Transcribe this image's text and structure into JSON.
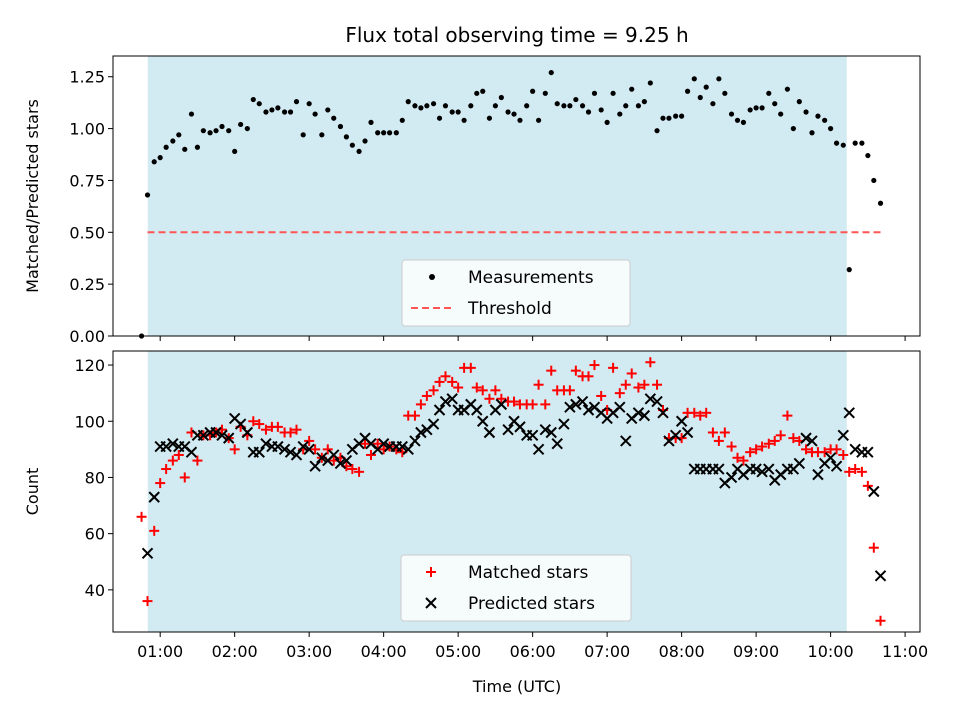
{
  "figure": {
    "title": "Flux total observing time = 9.25 h",
    "colors": {
      "shade": "#add8e6",
      "measurement": "#000000",
      "threshold": "#ff5555",
      "matched": "#ff0000",
      "predicted": "#000000"
    }
  },
  "chart_data": [
    {
      "type": "scatter",
      "title": "Flux total observing time = 9.25 h",
      "xlabel": "",
      "ylabel": "Matched/Predicted stars",
      "x_unit": "hours (UTC)",
      "xlim": [
        "00:22",
        "11:12"
      ],
      "ylim": [
        0,
        1.35
      ],
      "yticks": [
        0.0,
        0.25,
        0.5,
        0.75,
        1.0,
        1.25
      ],
      "ytick_labels": [
        "0.00",
        "0.25",
        "0.50",
        "0.75",
        "1.00",
        "1.25"
      ],
      "grid": false,
      "legend": "bottom-center",
      "shaded_span": [
        "00:50",
        "10:13"
      ],
      "series": [
        {
          "name": "Measurements",
          "kind": "scatter",
          "x": [
            0.75,
            0.83,
            0.92,
            1.0,
            1.08,
            1.17,
            1.25,
            1.33,
            1.42,
            1.5,
            1.58,
            1.67,
            1.75,
            1.83,
            1.92,
            2.0,
            2.08,
            2.17,
            2.25,
            2.33,
            2.42,
            2.5,
            2.58,
            2.67,
            2.75,
            2.83,
            2.92,
            3.0,
            3.08,
            3.17,
            3.25,
            3.33,
            3.42,
            3.5,
            3.58,
            3.67,
            3.75,
            3.83,
            3.92,
            4.0,
            4.08,
            4.17,
            4.25,
            4.33,
            4.42,
            4.5,
            4.58,
            4.67,
            4.75,
            4.83,
            4.92,
            5.0,
            5.08,
            5.17,
            5.25,
            5.33,
            5.42,
            5.5,
            5.58,
            5.67,
            5.75,
            5.83,
            5.92,
            6.0,
            6.08,
            6.17,
            6.25,
            6.33,
            6.42,
            6.5,
            6.58,
            6.67,
            6.75,
            6.83,
            6.92,
            7.0,
            7.08,
            7.17,
            7.25,
            7.33,
            7.42,
            7.5,
            7.58,
            7.67,
            7.75,
            7.83,
            7.92,
            8.0,
            8.08,
            8.17,
            8.25,
            8.33,
            8.42,
            8.5,
            8.58,
            8.67,
            8.75,
            8.83,
            8.92,
            9.0,
            9.08,
            9.17,
            9.25,
            9.33,
            9.42,
            9.5,
            9.58,
            9.67,
            9.75,
            9.83,
            9.92,
            10.0,
            10.08,
            10.17,
            10.25,
            10.33,
            10.42,
            10.5,
            10.58,
            10.67
          ],
          "y": [
            0.0,
            0.68,
            0.84,
            0.86,
            0.91,
            0.94,
            0.97,
            0.9,
            1.07,
            0.91,
            0.99,
            0.98,
            0.99,
            1.01,
            0.99,
            0.89,
            1.02,
            1.0,
            1.14,
            1.12,
            1.08,
            1.09,
            1.1,
            1.08,
            1.08,
            1.13,
            0.97,
            1.12,
            1.07,
            0.97,
            1.09,
            1.05,
            1.01,
            0.96,
            0.92,
            0.89,
            0.94,
            1.03,
            0.98,
            0.98,
            0.98,
            0.98,
            1.04,
            1.13,
            1.11,
            1.1,
            1.11,
            1.12,
            1.05,
            1.11,
            1.08,
            1.08,
            1.04,
            1.11,
            1.17,
            1.18,
            1.05,
            1.11,
            1.15,
            1.08,
            1.07,
            1.04,
            1.11,
            1.18,
            1.04,
            1.17,
            1.27,
            1.12,
            1.11,
            1.11,
            1.14,
            1.11,
            1.08,
            1.17,
            1.09,
            1.03,
            1.17,
            1.07,
            1.11,
            1.19,
            1.11,
            1.13,
            1.22,
            0.99,
            1.05,
            1.05,
            1.06,
            1.06,
            1.18,
            1.24,
            1.15,
            1.2,
            1.12,
            1.24,
            1.17,
            1.07,
            1.04,
            1.03,
            1.09,
            1.1,
            1.1,
            1.17,
            1.12,
            1.07,
            1.19,
            1.0,
            1.13,
            1.08,
            0.98,
            1.06,
            1.04,
            1.0,
            0.93,
            0.92,
            0.32,
            0.93,
            0.93,
            0.87,
            0.75,
            0.64
          ]
        },
        {
          "name": "Threshold",
          "kind": "dashed-line",
          "x": [
            0.83,
            10.67
          ],
          "y": [
            0.5,
            0.5
          ]
        }
      ]
    },
    {
      "type": "scatter",
      "title": "",
      "xlabel": "Time (UTC)",
      "ylabel": "Count",
      "x_unit": "hours (UTC)",
      "xlim": [
        "00:22",
        "11:12"
      ],
      "ylim": [
        25,
        125
      ],
      "yticks": [
        40,
        60,
        80,
        100,
        120
      ],
      "ytick_labels": [
        "40",
        "60",
        "80",
        "100",
        "120"
      ],
      "xticks": [
        1,
        2,
        3,
        4,
        5,
        6,
        7,
        8,
        9,
        10,
        11
      ],
      "xtick_labels": [
        "01:00",
        "02:00",
        "03:00",
        "04:00",
        "05:00",
        "06:00",
        "07:00",
        "08:00",
        "09:00",
        "10:00",
        "11:00"
      ],
      "grid": false,
      "legend": "bottom-center",
      "shaded_span": [
        "00:50",
        "10:13"
      ],
      "series": [
        {
          "name": "Matched stars",
          "kind": "plus",
          "x": [
            0.75,
            0.83,
            0.92,
            1.0,
            1.08,
            1.17,
            1.25,
            1.33,
            1.42,
            1.5,
            1.58,
            1.67,
            1.75,
            1.83,
            1.92,
            2.0,
            2.08,
            2.17,
            2.25,
            2.33,
            2.42,
            2.5,
            2.58,
            2.67,
            2.75,
            2.83,
            2.92,
            3.0,
            3.08,
            3.17,
            3.25,
            3.33,
            3.42,
            3.5,
            3.58,
            3.67,
            3.75,
            3.83,
            3.92,
            4.0,
            4.08,
            4.17,
            4.25,
            4.33,
            4.42,
            4.5,
            4.58,
            4.67,
            4.75,
            4.83,
            4.92,
            5.0,
            5.08,
            5.17,
            5.25,
            5.33,
            5.42,
            5.5,
            5.58,
            5.67,
            5.75,
            5.83,
            5.92,
            6.0,
            6.08,
            6.17,
            6.25,
            6.33,
            6.42,
            6.5,
            6.58,
            6.67,
            6.75,
            6.83,
            6.92,
            7.0,
            7.08,
            7.17,
            7.25,
            7.33,
            7.42,
            7.5,
            7.58,
            7.67,
            7.75,
            7.83,
            7.92,
            8.0,
            8.08,
            8.17,
            8.25,
            8.33,
            8.42,
            8.5,
            8.58,
            8.67,
            8.75,
            8.83,
            8.92,
            9.0,
            9.08,
            9.17,
            9.25,
            9.33,
            9.42,
            9.5,
            9.58,
            9.67,
            9.75,
            9.83,
            9.92,
            10.0,
            10.08,
            10.17,
            10.25,
            10.33,
            10.42,
            10.5,
            10.58,
            10.67
          ],
          "y": [
            66,
            36,
            61,
            78,
            83,
            86,
            88,
            80,
            96,
            86,
            95,
            95,
            96,
            97,
            94,
            90,
            98,
            95,
            100,
            99,
            97,
            98,
            98,
            96,
            96,
            97,
            90,
            93,
            90,
            87,
            90,
            86,
            87,
            84,
            83,
            82,
            92,
            88,
            92,
            90,
            91,
            90,
            89,
            102,
            102,
            106,
            109,
            111,
            114,
            116,
            114,
            112,
            119,
            119,
            112,
            111,
            108,
            111,
            108,
            107,
            107,
            106,
            106,
            106,
            113,
            106,
            118,
            111,
            111,
            111,
            118,
            116,
            116,
            120,
            109,
            104,
            119,
            110,
            113,
            117,
            112,
            113,
            121,
            113,
            104,
            94,
            94,
            94,
            103,
            103,
            102,
            103,
            96,
            93,
            96,
            91,
            87,
            86,
            89,
            90,
            91,
            92,
            93,
            95,
            102,
            94,
            93,
            90,
            89,
            89,
            89,
            90,
            90,
            88,
            82,
            83,
            82,
            77,
            55,
            29
          ]
        },
        {
          "name": "Predicted stars",
          "kind": "x",
          "x": [
            0.83,
            0.92,
            1.0,
            1.08,
            1.17,
            1.25,
            1.33,
            1.42,
            1.5,
            1.58,
            1.67,
            1.75,
            1.83,
            1.92,
            2.0,
            2.08,
            2.17,
            2.25,
            2.33,
            2.42,
            2.5,
            2.58,
            2.67,
            2.75,
            2.83,
            2.92,
            3.0,
            3.08,
            3.17,
            3.25,
            3.33,
            3.42,
            3.5,
            3.58,
            3.67,
            3.75,
            3.83,
            3.92,
            4.0,
            4.08,
            4.17,
            4.25,
            4.33,
            4.42,
            4.5,
            4.58,
            4.67,
            4.75,
            4.83,
            4.92,
            5.0,
            5.08,
            5.17,
            5.25,
            5.33,
            5.42,
            5.5,
            5.58,
            5.67,
            5.75,
            5.83,
            5.92,
            6.0,
            6.08,
            6.17,
            6.25,
            6.33,
            6.42,
            6.5,
            6.58,
            6.67,
            6.75,
            6.83,
            6.92,
            7.0,
            7.08,
            7.17,
            7.25,
            7.33,
            7.42,
            7.5,
            7.58,
            7.67,
            7.75,
            7.83,
            7.92,
            8.0,
            8.08,
            8.17,
            8.25,
            8.33,
            8.42,
            8.5,
            8.58,
            8.67,
            8.75,
            8.83,
            8.92,
            9.0,
            9.08,
            9.17,
            9.25,
            9.33,
            9.42,
            9.5,
            9.58,
            9.67,
            9.75,
            9.83,
            9.92,
            10.0,
            10.08,
            10.17,
            10.25,
            10.33,
            10.42,
            10.5,
            10.58,
            10.67
          ],
          "y": [
            53,
            73,
            91,
            91,
            92,
            91,
            91,
            89,
            95,
            95,
            96,
            96,
            95,
            94,
            101,
            99,
            96,
            89,
            89,
            92,
            91,
            91,
            90,
            89,
            88,
            91,
            90,
            84,
            87,
            86,
            88,
            85,
            86,
            90,
            92,
            94,
            92,
            90,
            92,
            91,
            91,
            91,
            90,
            93,
            96,
            97,
            99,
            104,
            107,
            108,
            104,
            104,
            106,
            104,
            100,
            96,
            104,
            106,
            97,
            100,
            98,
            95,
            95,
            90,
            97,
            96,
            92,
            99,
            105,
            106,
            107,
            104,
            105,
            103,
            101,
            103,
            105,
            93,
            101,
            103,
            102,
            108,
            107,
            103,
            93,
            95,
            100,
            96,
            83,
            83,
            83,
            83,
            83,
            78,
            80,
            83,
            81,
            83,
            83,
            82,
            83,
            79,
            81,
            83,
            83,
            85,
            94,
            93,
            81,
            85,
            87,
            84,
            95,
            103,
            90,
            89,
            89,
            75,
            45
          ]
        }
      ]
    }
  ]
}
